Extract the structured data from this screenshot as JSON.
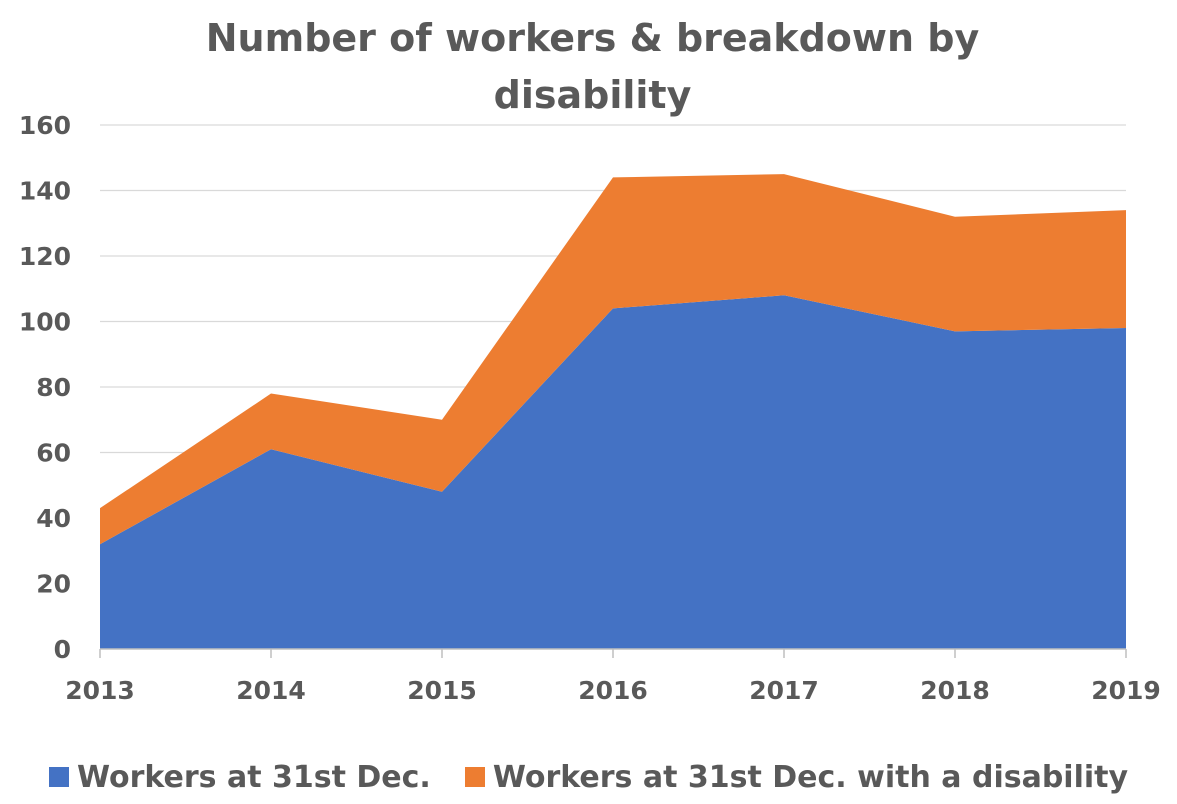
{
  "chart_data": {
    "type": "area",
    "stacked": true,
    "title": "Number of workers & breakdown by disability",
    "title_lines": [
      "Number of workers & breakdown by",
      "disability"
    ],
    "xlabel": "",
    "ylabel": "",
    "categories": [
      "2013",
      "2014",
      "2015",
      "2016",
      "2017",
      "2018",
      "2019"
    ],
    "ylim": [
      0,
      160
    ],
    "yticks": [
      0,
      20,
      40,
      60,
      80,
      100,
      120,
      140,
      160
    ],
    "grid": true,
    "legend_position": "bottom",
    "series": [
      {
        "name": "Workers at 31st Dec.",
        "color": "#4472C4",
        "values": [
          32,
          61,
          48,
          104,
          108,
          97,
          98
        ]
      },
      {
        "name": "Workers at 31st Dec. with a disability",
        "color": "#ED7D31",
        "values": [
          11,
          17,
          22,
          40,
          37,
          35,
          36
        ]
      }
    ]
  }
}
